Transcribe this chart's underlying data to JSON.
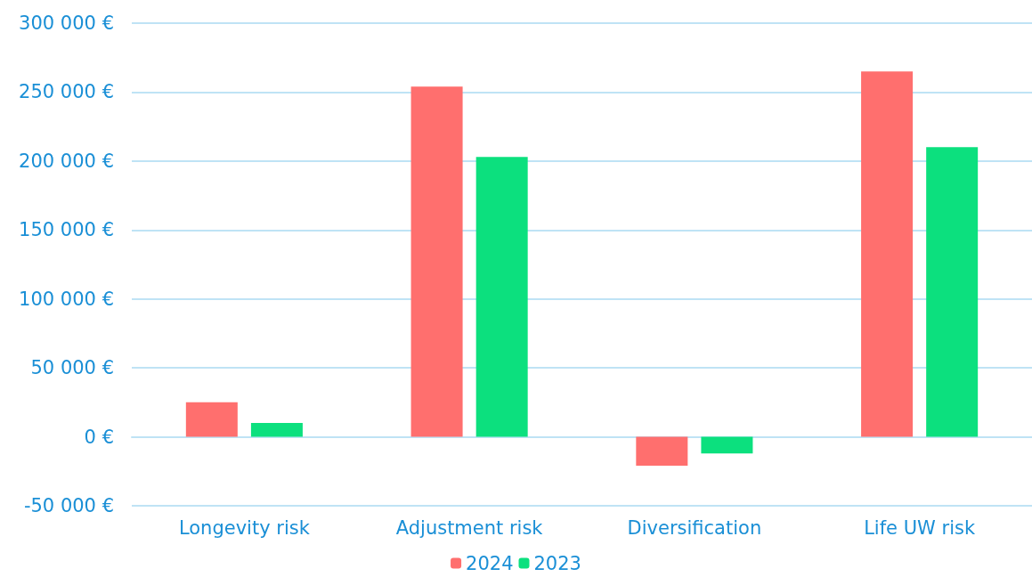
{
  "chart_data": {
    "type": "bar",
    "categories": [
      "Longevity risk",
      "Adjustment risk",
      "Diversification",
      "Life UW risk"
    ],
    "series": [
      {
        "name": "2024",
        "color": "#ff6f6e",
        "values": [
          25000,
          254000,
          -21000,
          265000
        ]
      },
      {
        "name": "2023",
        "color": "#0ce07e",
        "values": [
          10000,
          203000,
          -12000,
          210000
        ]
      }
    ],
    "ylim": [
      -50000,
      300000
    ],
    "yticks": [
      {
        "value": -50000,
        "label": "-50 000 €"
      },
      {
        "value": 0,
        "label": "0 €"
      },
      {
        "value": 50000,
        "label": "50 000 €"
      },
      {
        "value": 100000,
        "label": "100 000 €"
      },
      {
        "value": 150000,
        "label": "150 000 €"
      },
      {
        "value": 200000,
        "label": "200 000 €"
      },
      {
        "value": 250000,
        "label": "250 000 €"
      },
      {
        "value": 300000,
        "label": "300 000 €"
      }
    ],
    "grid": "y",
    "legend": "bottom"
  }
}
